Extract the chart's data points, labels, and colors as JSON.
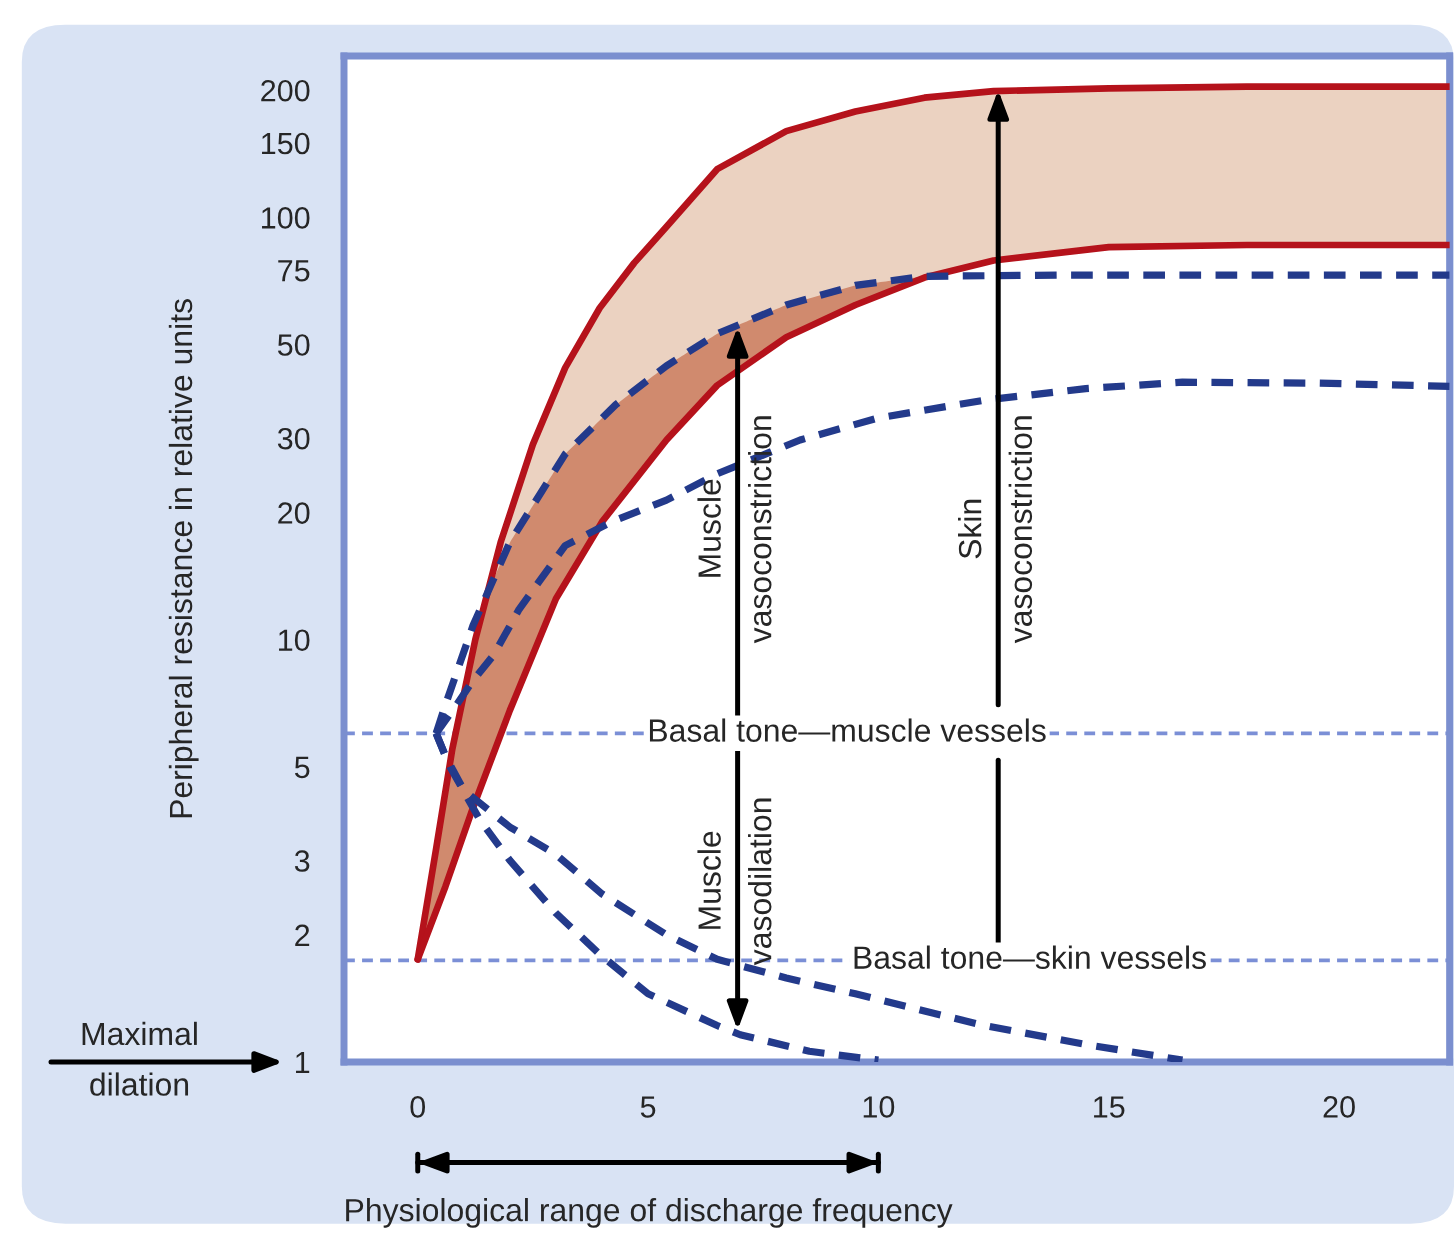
{
  "chart_data": {
    "type": "line",
    "ylabel": "Peripheral resistance in relative units",
    "log": "y",
    "xlim": [
      -1.6,
      22.4
    ],
    "ylim": [
      1,
      241
    ],
    "xticks": [
      0,
      5,
      10,
      15,
      20
    ],
    "yticks": [
      1,
      2,
      3,
      5,
      10,
      20,
      30,
      50,
      75,
      100,
      150,
      200
    ],
    "series": [
      {
        "color": "#b5121b",
        "line_style": "solid",
        "x": [
          0,
          0.4,
          0.75,
          1.25,
          1.8,
          2.5,
          3.2,
          3.95,
          4.7,
          5.4,
          6.5,
          8,
          9.5,
          11,
          12.5,
          15,
          18,
          22.4
        ],
        "values": [
          1.75,
          3.2,
          5.5,
          10,
          17,
          29,
          44,
          61,
          78,
          95,
          130,
          160,
          178,
          192,
          199,
          202,
          204,
          204
        ]
      },
      {
        "color": "#b5121b",
        "line_style": "solid",
        "x": [
          0,
          0.6,
          1.2,
          2,
          3,
          4,
          5.4,
          6.5,
          8,
          9.5,
          11,
          12.5,
          15,
          18,
          22.4
        ],
        "values": [
          1.75,
          2.6,
          4.0,
          6.8,
          12.5,
          19,
          29.7,
          40,
          52,
          62,
          72,
          79,
          85,
          86,
          86
        ]
      },
      {
        "color": "#233a8b",
        "line_style": "dashed",
        "x": [
          0.4,
          0.6,
          0.9,
          1.2,
          2,
          3.2,
          4.3,
          5.4,
          6.5,
          8,
          9.5,
          11,
          14,
          18,
          22.4
        ],
        "values": [
          6,
          7,
          8.7,
          10.8,
          17,
          27.5,
          36,
          44.5,
          53,
          62,
          69,
          72.5,
          73,
          73,
          73
        ]
      },
      {
        "color": "#233a8b",
        "line_style": "dashed",
        "x": [
          0.4,
          0.8,
          1.2,
          1.65,
          2.2,
          3.2,
          4.2,
          5.4,
          6.5,
          8.3,
          10,
          12.3,
          14.5,
          16.6,
          19.5,
          22.4
        ],
        "values": [
          6,
          6.9,
          8,
          9.2,
          11.8,
          16.7,
          19,
          21.4,
          24.7,
          29.7,
          33.5,
          36.9,
          39.3,
          40.7,
          40.5,
          39.8
        ]
      },
      {
        "color": "#233a8b",
        "line_style": "dashed",
        "x": [
          0.4,
          0.6,
          1.0,
          2,
          3,
          4,
          5.4,
          6.5,
          8,
          9.5,
          11,
          12.3,
          14.5,
          16.6
        ],
        "values": [
          6,
          5.3,
          4.4,
          3.6,
          3.1,
          2.5,
          2.0,
          1.75,
          1.58,
          1.45,
          1.32,
          1.22,
          1.1,
          1.01
        ]
      },
      {
        "color": "#233a8b",
        "line_style": "dashed",
        "x": [
          0.4,
          0.7,
          1.35,
          2,
          3,
          3.95,
          5,
          6.5,
          7,
          8.5,
          10
        ],
        "values": [
          6,
          5.0,
          3.74,
          3.0,
          2.25,
          1.8,
          1.45,
          1.22,
          1.16,
          1.06,
          1.01
        ]
      }
    ],
    "ref_lines": [
      {
        "axis": "y",
        "value": 6,
        "label": "Basal tone—muscle vessels",
        "color": "#7b8fd6",
        "line_style": "dashed"
      },
      {
        "axis": "y",
        "value": 1.74,
        "label": "Basal tone—skin vessels",
        "color": "#7b8fd6",
        "line_style": "dashed"
      }
    ],
    "annotations": [
      "Muscle\nvasoconstriction",
      "Muscle\nvasodilation",
      "Skin\nvasoconstriction",
      "Maximal\ndilation",
      "Physiological range of discharge frequency"
    ]
  }
}
